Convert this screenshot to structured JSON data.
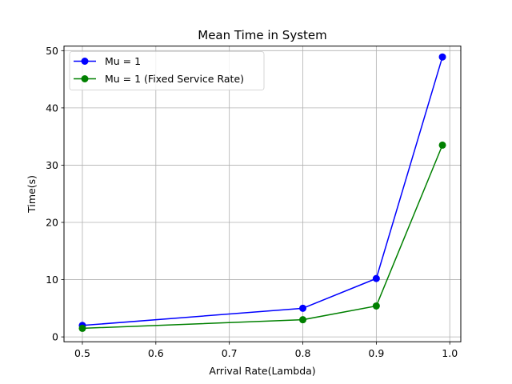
{
  "chart_data": {
    "type": "line",
    "title": "Mean Time in System",
    "xlabel": "Arrival Rate(Lambda)",
    "ylabel": "Time(s)",
    "xlim": [
      0.475,
      1.015
    ],
    "ylim": [
      -0.85,
      50.8
    ],
    "xticks": [
      0.5,
      0.6,
      0.7,
      0.8,
      0.9,
      1.0
    ],
    "xtick_labels": [
      "0.5",
      "0.6",
      "0.7",
      "0.8",
      "0.9",
      "1.0"
    ],
    "yticks": [
      0,
      10,
      20,
      30,
      40,
      50
    ],
    "ytick_labels": [
      "0",
      "10",
      "20",
      "30",
      "40",
      "50"
    ],
    "grid": true,
    "legend_position": "top-left",
    "series": [
      {
        "name": "Mu = 1",
        "color": "#0000ff",
        "marker": "circle",
        "x": [
          0.5,
          0.8,
          0.9,
          0.99
        ],
        "y": [
          2.0,
          5.0,
          10.2,
          48.9
        ]
      },
      {
        "name": "Mu = 1 (Fixed Service Rate)",
        "color": "#008000",
        "marker": "circle",
        "x": [
          0.5,
          0.8,
          0.9,
          0.99
        ],
        "y": [
          1.5,
          3.0,
          5.4,
          33.5
        ]
      }
    ]
  }
}
